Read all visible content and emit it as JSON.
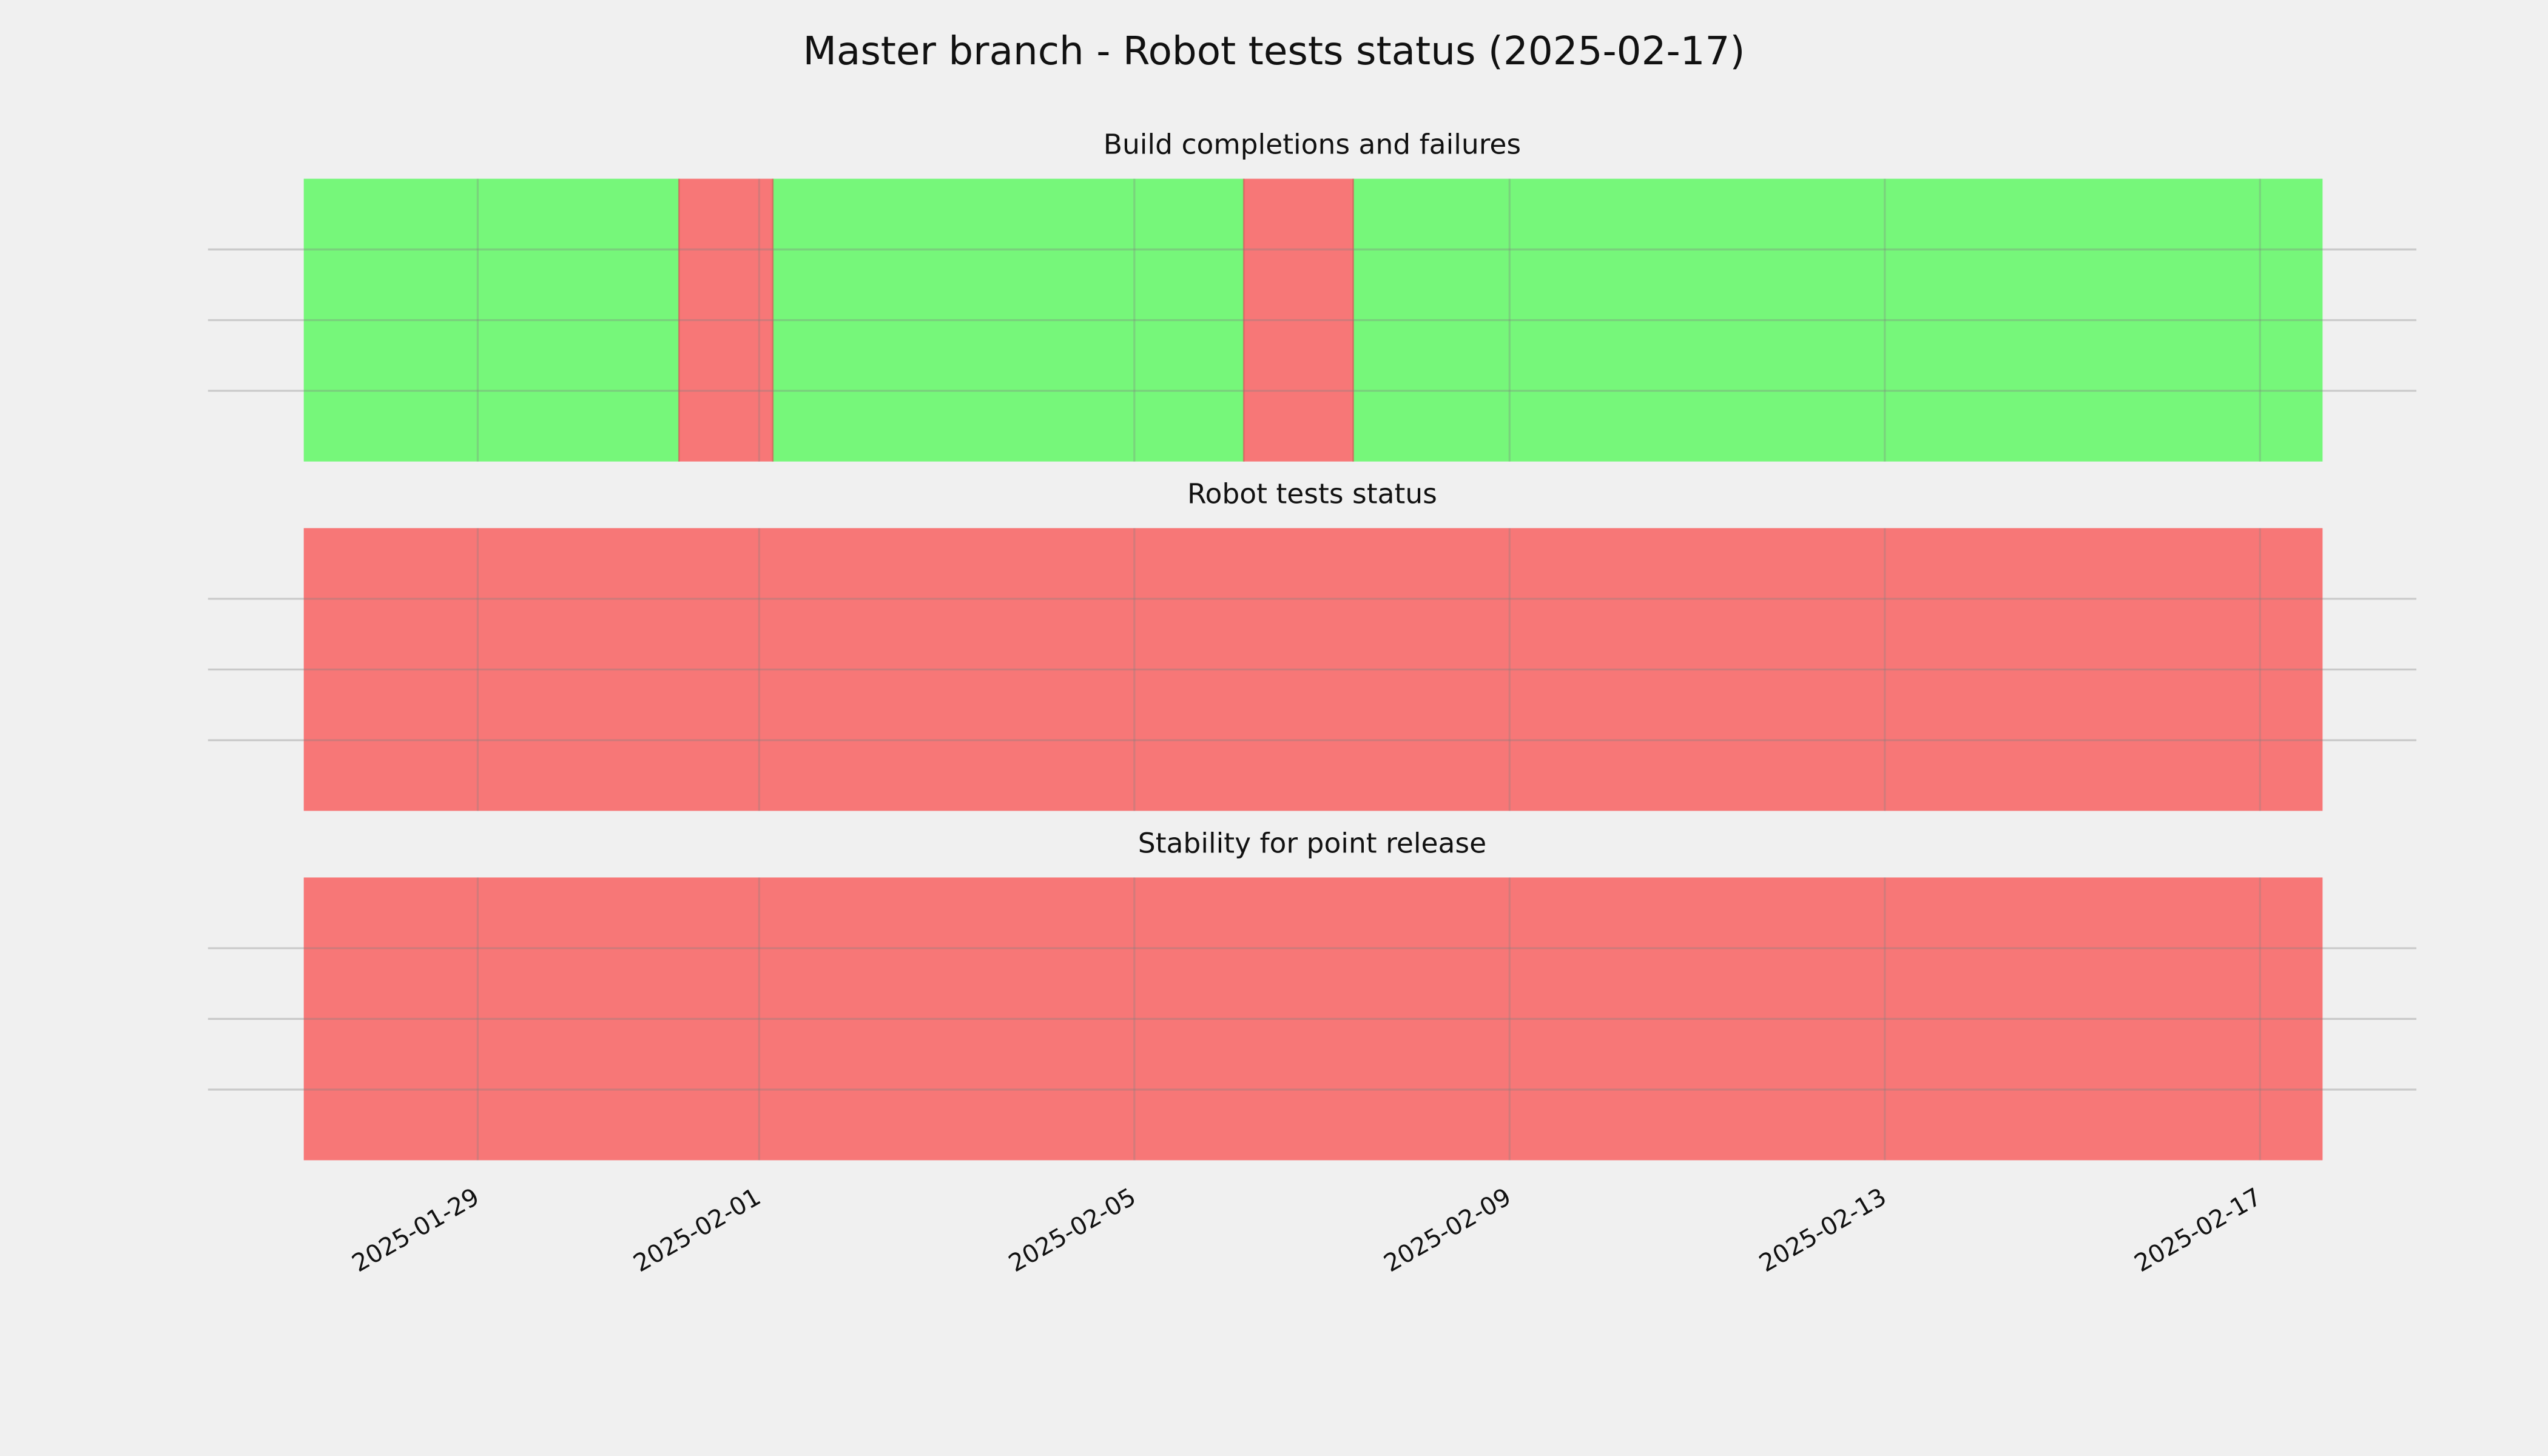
{
  "title": "Master branch - Robot tests status (2025-02-17)",
  "chart_data": [
    {
      "type": "timeline",
      "title": "Build completions and failures",
      "xlim": [
        "2025-01-26T03:00",
        "2025-02-18T16:00"
      ],
      "xticks": [
        "2025-01-29",
        "2025-02-01",
        "2025-02-05",
        "2025-02-09",
        "2025-02-13",
        "2025-02-17"
      ],
      "ylim": [
        0,
        1
      ],
      "yticks": [
        0.25,
        0.5,
        0.75
      ],
      "grid": true,
      "spans": [
        {
          "start": "2025-01-27T03:30",
          "end": "2025-01-31T03:30",
          "color": "#76f77a"
        },
        {
          "start": "2025-01-31T03:30",
          "end": "2025-02-01T03:30",
          "color": "#f77777"
        },
        {
          "start": "2025-02-01T03:30",
          "end": "2025-02-06T04:00",
          "color": "#76f77a"
        },
        {
          "start": "2025-02-06T04:00",
          "end": "2025-02-07T08:00",
          "color": "#f77777"
        },
        {
          "start": "2025-02-07T08:00",
          "end": "2025-02-17T16:00",
          "color": "#76f77a"
        }
      ]
    },
    {
      "type": "timeline",
      "title": "Robot tests status",
      "xlim": [
        "2025-01-26T03:00",
        "2025-02-18T16:00"
      ],
      "xticks": [
        "2025-01-29",
        "2025-02-01",
        "2025-02-05",
        "2025-02-09",
        "2025-02-13",
        "2025-02-17"
      ],
      "ylim": [
        0,
        1
      ],
      "yticks": [
        0.25,
        0.5,
        0.75
      ],
      "grid": true,
      "spans": [
        {
          "start": "2025-01-27T03:30",
          "end": "2025-02-17T16:00",
          "color": "#f77777"
        }
      ]
    },
    {
      "type": "timeline",
      "title": "Stability for point release",
      "xlim": [
        "2025-01-26T03:00",
        "2025-02-18T16:00"
      ],
      "xticks": [
        "2025-01-29",
        "2025-02-01",
        "2025-02-05",
        "2025-02-09",
        "2025-02-13",
        "2025-02-17"
      ],
      "ylim": [
        0,
        1
      ],
      "yticks": [
        0.25,
        0.5,
        0.75
      ],
      "grid": true,
      "spans": [
        {
          "start": "2025-01-27T03:30",
          "end": "2025-02-17T16:00",
          "color": "#f77777"
        }
      ]
    }
  ]
}
